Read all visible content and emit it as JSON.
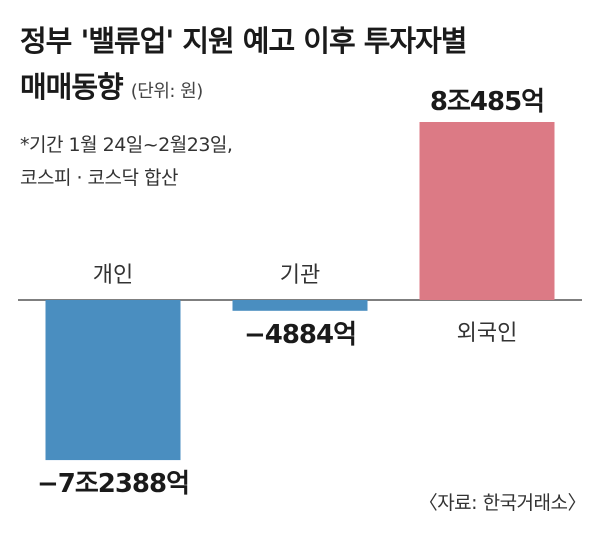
{
  "title_line1": "정부 '밸류업' 지원 예고 이후 투자자별",
  "title_line2": "매매동향",
  "unit": "(단위: 원)",
  "note_line1": "*기간 1월 24일~2월23일,",
  "note_line2": "코스피 · 코스닥 합산",
  "source": "〈자료: 한국거래소〉",
  "colors": {
    "negative": "#4a8ec0",
    "positive": "#dc7a85",
    "axis": "#555555"
  },
  "chart_data": {
    "type": "bar",
    "categories": [
      "개인",
      "기관",
      "외국인"
    ],
    "values": [
      -72388,
      -4884,
      80485
    ],
    "value_unit": "억원",
    "value_labels": [
      "−7조2388억",
      "−4884억",
      "8조485억"
    ],
    "title": "정부 '밸류업' 지원 예고 이후 투자자별 매매동향",
    "grid": false
  }
}
